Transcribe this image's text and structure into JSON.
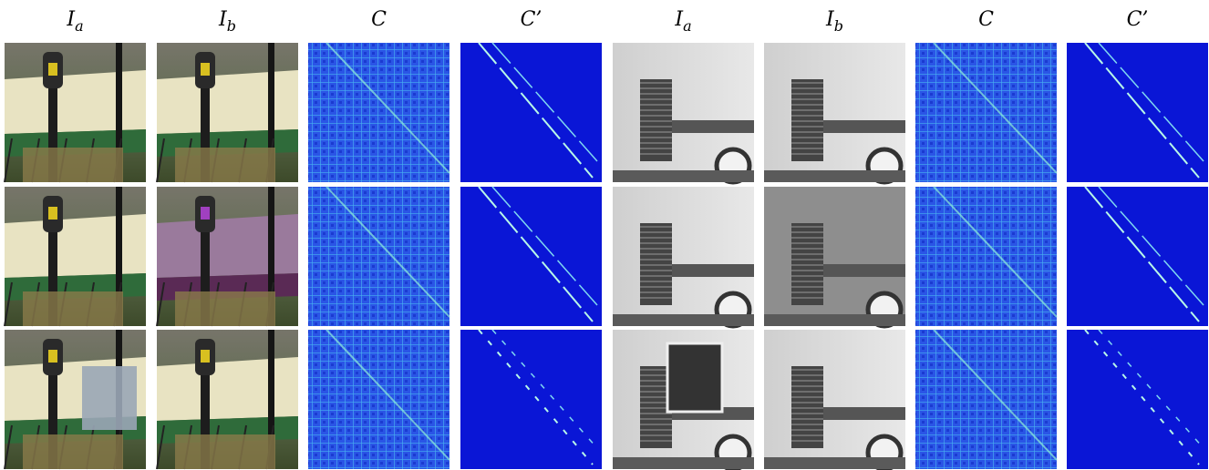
{
  "headers": [
    {
      "base": "I",
      "sub": "a"
    },
    {
      "base": "I",
      "sub": "b"
    },
    {
      "base": "C"
    },
    {
      "base": "C’"
    },
    {
      "base": "I",
      "sub": "a"
    },
    {
      "base": "I",
      "sub": "b"
    },
    {
      "base": "C"
    },
    {
      "base": "C’"
    }
  ]
}
